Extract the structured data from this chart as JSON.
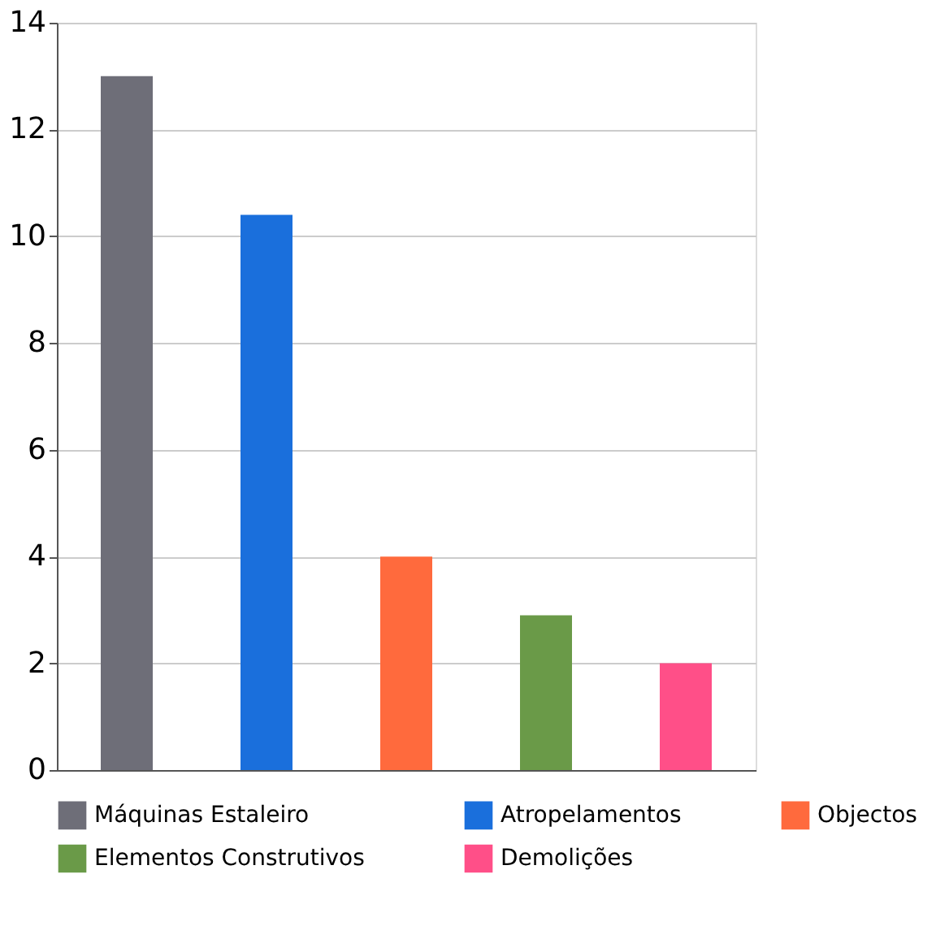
{
  "chart_data": {
    "type": "bar",
    "categories": [
      null,
      null,
      null,
      null,
      null
    ],
    "series": [
      {
        "name": "Máquinas Estaleiro",
        "color": "#6e6e78",
        "values": [
          13,
          null,
          null,
          null,
          null
        ]
      },
      {
        "name": "Atropelamentos",
        "color": "#1a6fdc",
        "values": [
          null,
          10.4,
          null,
          null,
          null
        ]
      },
      {
        "name": "Objectos",
        "color": "#ff6a3d",
        "values": [
          null,
          null,
          4,
          null,
          null
        ]
      },
      {
        "name": "Elementos Construtivos",
        "color": "#6a9a48",
        "values": [
          null,
          null,
          null,
          2.9,
          null
        ]
      },
      {
        "name": "Demolições",
        "color": "#ff4f88",
        "values": [
          null,
          null,
          null,
          null,
          2
        ]
      }
    ],
    "ylim": [
      0,
      14
    ],
    "yticks": [
      0,
      2,
      4,
      6,
      8,
      10,
      12,
      14
    ],
    "grid": "y",
    "legend": "bottom",
    "tick_labels": "y"
  }
}
